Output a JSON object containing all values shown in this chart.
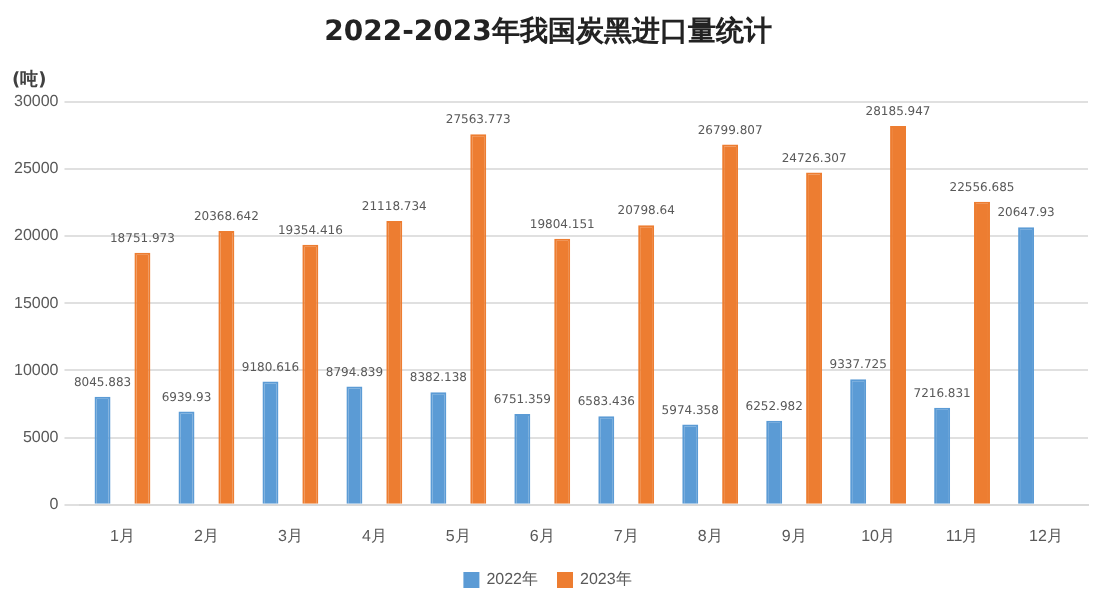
{
  "chart_data": {
    "type": "bar",
    "title": "2022-2023年我国炭黑进口量统计",
    "ylabel": "(吨)",
    "categories": [
      "1月",
      "2月",
      "3月",
      "4月",
      "5月",
      "6月",
      "7月",
      "8月",
      "9月",
      "10月",
      "11月",
      "12月"
    ],
    "series": [
      {
        "name": "2022年",
        "color": "#5b9bd5",
        "values": [
          8045.883,
          6939.93,
          9180.616,
          8794.839,
          8382.138,
          6751.359,
          6583.436,
          5974.358,
          6252.982,
          9337.725,
          7216.831,
          20647.93
        ]
      },
      {
        "name": "2023年",
        "color": "#ed7d31",
        "values": [
          18751.973,
          20368.642,
          19354.416,
          21118.734,
          27563.773,
          19804.151,
          20798.64,
          26799.807,
          24726.307,
          28185.947,
          22556.685,
          null
        ]
      }
    ],
    "ylim": [
      0,
      30000
    ],
    "yticks": [
      0,
      5000,
      10000,
      15000,
      20000,
      25000,
      30000
    ],
    "grid": "y",
    "legend": "bottom",
    "data_labels": true
  }
}
